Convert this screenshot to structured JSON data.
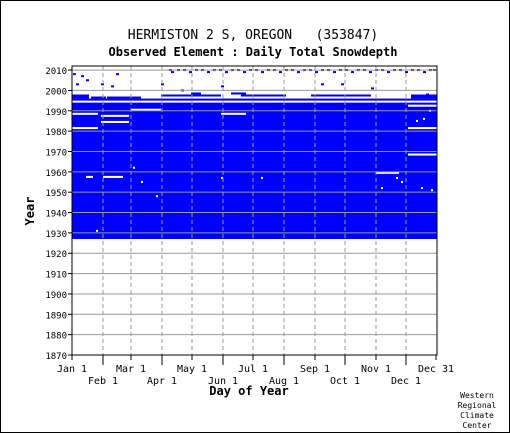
{
  "chart_data": {
    "type": "heatmap",
    "title": "HERMISTON 2 S, OREGON   (353847)",
    "subtitle": "Observed Element : Daily Total Snowdepth",
    "xlabel": "Day of Year",
    "ylabel": "Year",
    "xlim": [
      1,
      366
    ],
    "ylim": [
      1870,
      2012
    ],
    "x_ticks_top_row": [
      {
        "label": "Jan 1",
        "day": 1
      },
      {
        "label": "Mar 1",
        "day": 60
      },
      {
        "label": "May 1",
        "day": 121
      },
      {
        "label": "Jul 1",
        "day": 182
      },
      {
        "label": "Sep 1",
        "day": 244
      },
      {
        "label": "Nov 1",
        "day": 305
      },
      {
        "label": "Dec 31",
        "day": 365
      }
    ],
    "x_ticks_bottom_row": [
      {
        "label": "Feb 1",
        "day": 32
      },
      {
        "label": "Apr 1",
        "day": 91
      },
      {
        "label": "Jun 1",
        "day": 152
      },
      {
        "label": "Aug 1",
        "day": 213
      },
      {
        "label": "Oct 1",
        "day": 274
      },
      {
        "label": "Dec 1",
        "day": 335
      }
    ],
    "y_ticks": [
      1870,
      1880,
      1890,
      1900,
      1910,
      1920,
      1930,
      1940,
      1950,
      1960,
      1970,
      1980,
      1990,
      2000,
      2010
    ],
    "grid": true,
    "colors": {
      "observed": "#0000ff",
      "missing": "#ffffff",
      "grid": "#999999"
    },
    "observed_blocks": [
      {
        "day_start": 1,
        "day_end": 366,
        "year_start": 1927,
        "year_end": 1994
      },
      {
        "day_start": 1,
        "day_end": 366,
        "year_start": 1995,
        "year_end": 1996
      },
      {
        "day_start": 1,
        "day_end": 18,
        "year_start": 1996,
        "year_end": 1998
      },
      {
        "day_start": 20,
        "day_end": 35,
        "year_start": 1996,
        "year_end": 1997
      },
      {
        "day_start": 36,
        "day_end": 70,
        "year_start": 1996,
        "year_end": 1997
      },
      {
        "day_start": 340,
        "day_end": 366,
        "year_start": 1996,
        "year_end": 1998
      },
      {
        "day_start": 90,
        "day_end": 150,
        "year_start": 1997,
        "year_end": 1998
      },
      {
        "day_start": 170,
        "day_end": 215,
        "year_start": 1997,
        "year_end": 1998
      },
      {
        "day_start": 240,
        "day_end": 300,
        "year_start": 1997,
        "year_end": 1998
      },
      {
        "day_start": 120,
        "day_end": 130,
        "year_start": 1998,
        "year_end": 1999
      },
      {
        "day_start": 160,
        "day_end": 175,
        "year_start": 1998,
        "year_end": 1999
      }
    ],
    "missing_gaps": [
      {
        "day_start": 1,
        "day_end": 27,
        "year_start": 1988,
        "year_end": 1989
      },
      {
        "day_start": 1,
        "day_end": 27,
        "year_start": 1981,
        "year_end": 1982
      },
      {
        "day_start": 30,
        "day_end": 58,
        "year_start": 1987,
        "year_end": 1988
      },
      {
        "day_start": 30,
        "day_end": 58,
        "year_start": 1984,
        "year_end": 1985
      },
      {
        "day_start": 60,
        "day_end": 90,
        "year_start": 1990,
        "year_end": 1991
      },
      {
        "day_start": 150,
        "day_end": 175,
        "year_start": 1988,
        "year_end": 1989
      },
      {
        "day_start": 337,
        "day_end": 366,
        "year_start": 1981,
        "year_end": 1982
      },
      {
        "day_start": 337,
        "day_end": 366,
        "year_start": 1968,
        "year_end": 1969
      },
      {
        "day_start": 337,
        "day_end": 366,
        "year_start": 1992,
        "year_end": 1993
      },
      {
        "day_start": 305,
        "day_end": 328,
        "year_start": 1959,
        "year_end": 1960
      },
      {
        "day_start": 32,
        "day_end": 52,
        "year_start": 1957,
        "year_end": 1958
      },
      {
        "day_start": 15,
        "day_end": 22,
        "year_start": 1957,
        "year_end": 1958
      }
    ],
    "scattered_obs": [
      [
        2,
        2008
      ],
      [
        5,
        2003
      ],
      [
        10,
        2007
      ],
      [
        15,
        2005
      ],
      [
        30,
        2003
      ],
      [
        40,
        2002
      ],
      [
        45,
        2008
      ],
      [
        98,
        2010
      ],
      [
        100,
        2009
      ],
      [
        106,
        2010
      ],
      [
        112,
        2010
      ],
      [
        118,
        2009
      ],
      [
        124,
        2010
      ],
      [
        130,
        2010
      ],
      [
        136,
        2009
      ],
      [
        142,
        2010
      ],
      [
        148,
        2010
      ],
      [
        154,
        2009
      ],
      [
        160,
        2010
      ],
      [
        166,
        2010
      ],
      [
        172,
        2009
      ],
      [
        178,
        2010
      ],
      [
        184,
        2010
      ],
      [
        190,
        2009
      ],
      [
        196,
        2010
      ],
      [
        202,
        2010
      ],
      [
        208,
        2009
      ],
      [
        214,
        2010
      ],
      [
        220,
        2010
      ],
      [
        226,
        2009
      ],
      [
        232,
        2010
      ],
      [
        238,
        2010
      ],
      [
        244,
        2009
      ],
      [
        250,
        2010
      ],
      [
        256,
        2010
      ],
      [
        262,
        2009
      ],
      [
        268,
        2010
      ],
      [
        274,
        2010
      ],
      [
        280,
        2009
      ],
      [
        286,
        2010
      ],
      [
        292,
        2010
      ],
      [
        298,
        2009
      ],
      [
        304,
        2010
      ],
      [
        310,
        2010
      ],
      [
        316,
        2009
      ],
      [
        322,
        2010
      ],
      [
        328,
        2010
      ],
      [
        334,
        2009
      ],
      [
        340,
        2010
      ],
      [
        346,
        2010
      ],
      [
        352,
        2009
      ],
      [
        358,
        2010
      ],
      [
        362,
        2010
      ],
      [
        90,
        2003
      ],
      [
        110,
        2000
      ],
      [
        150,
        2002
      ],
      [
        250,
        2003
      ],
      [
        270,
        2003
      ],
      [
        300,
        2001
      ],
      [
        355,
        1998
      ]
    ],
    "scattered_missing": [
      [
        25,
        1931
      ],
      [
        62,
        1962
      ],
      [
        70,
        1955
      ],
      [
        85,
        1948
      ],
      [
        150,
        1957
      ],
      [
        190,
        1957
      ],
      [
        325,
        1957
      ],
      [
        330,
        1955
      ],
      [
        345,
        1985
      ],
      [
        352,
        1986
      ],
      [
        358,
        1990
      ],
      [
        350,
        1952
      ],
      [
        360,
        1951
      ],
      [
        310,
        1952
      ]
    ]
  },
  "footer": {
    "credit_lines": [
      "Western",
      "Regional",
      "Climate",
      "Center"
    ]
  }
}
